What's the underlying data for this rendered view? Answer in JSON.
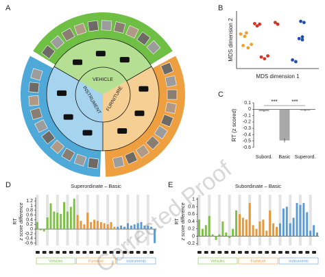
{
  "diagram": {
    "panel": "A",
    "labels": [
      "VEHICLE",
      "INSTRUMENT",
      "FURNITURE"
    ]
  },
  "watermark": "Corrected Proof",
  "chart_data": [
    {
      "type": "scatter",
      "panel": "B",
      "xlabel": "MDS dimension 1",
      "ylabel": "MDS dimension 2",
      "xlim": [
        0,
        1
      ],
      "ylim": [
        0,
        1
      ],
      "series": [
        {
          "color": "#d93025",
          "x": [
            0.22,
            0.25,
            0.28,
            0.47,
            0.5,
            0.3,
            0.34,
            0.38
          ],
          "y": [
            0.78,
            0.74,
            0.77,
            0.8,
            0.77,
            0.2,
            0.17,
            0.22
          ]
        },
        {
          "color": "#1f4fb0",
          "x": [
            0.78,
            0.82,
            0.8,
            0.76,
            0.8,
            0.68,
            0.72
          ],
          "y": [
            0.82,
            0.8,
            0.55,
            0.52,
            0.5,
            0.15,
            0.12
          ]
        },
        {
          "color": "#f0a030",
          "x": [
            0.05,
            0.1,
            0.12,
            0.08,
            0.14,
            0.18
          ],
          "y": [
            0.6,
            0.56,
            0.62,
            0.4,
            0.36,
            0.42
          ]
        }
      ]
    },
    {
      "type": "bar",
      "panel": "C",
      "ylabel": "RT (z scored)",
      "categories": [
        "Subord.",
        "Basic",
        "Superord."
      ],
      "values": [
        -0.03,
        -0.49,
        -0.02
      ],
      "errors": [
        0.01,
        0.03,
        0.01
      ],
      "color": "#a8a8a8",
      "ylim": [
        -0.6,
        0.1
      ],
      "yticks": [
        0.1,
        0,
        -0.1,
        -0.2,
        -0.3,
        -0.4,
        -0.5,
        -0.6
      ],
      "annotations": [
        "***",
        "***"
      ]
    },
    {
      "type": "bar",
      "panel": "D",
      "title": "Superordinate – Basic",
      "ylabel": [
        "RT",
        "z score difference"
      ],
      "ylim": [
        -0.7,
        1.35
      ],
      "yticks": [
        1.2,
        1,
        0.8,
        0.6,
        0.4,
        0.2,
        0,
        -0.2,
        -0.4,
        -0.6
      ],
      "groups": [
        {
          "name": "Vehicles",
          "color": "#7cc242",
          "values": [
            0.3,
            -0.05,
            -0.1,
            0.5,
            1.1,
            0.75,
            0.7,
            0.65,
            1.15,
            0.75,
            0.95,
            1.3
          ]
        },
        {
          "name": "Furniture",
          "color": "#e8963a",
          "values": [
            0.6,
            0.35,
            0.2,
            0.7,
            0.3,
            0.4,
            0.35,
            0.3,
            0.25,
            0.2,
            0.3,
            0.1
          ]
        },
        {
          "name": "Instruments",
          "color": "#5b9bd5",
          "values": [
            0.1,
            0.15,
            0.1,
            0.25,
            0.15,
            0.2,
            0.25,
            0.3,
            0.15,
            0.15,
            0.1,
            -0.6
          ]
        }
      ]
    },
    {
      "type": "bar",
      "panel": "E",
      "title": "Subordinate – Basic",
      "ylabel": [
        "RT",
        "z score difference"
      ],
      "ylim": [
        -0.25,
        1.05
      ],
      "yticks": [
        1,
        0.8,
        0.6,
        0.4,
        0.2,
        0,
        -0.2
      ],
      "groups": [
        {
          "name": "Vehicles",
          "color": "#7cc242",
          "values": [
            0.45,
            0.2,
            0.3,
            0.55,
            0.05,
            -0.1,
            0.05,
            0.4,
            0.1,
            -0.05,
            0.2,
            0.7
          ]
        },
        {
          "name": "Furniture",
          "color": "#e8963a",
          "values": [
            0.6,
            0.5,
            0.45,
            0.9,
            0.3,
            0.2,
            0.4,
            0.45,
            0.15,
            0.7,
            0.35,
            0.25
          ]
        },
        {
          "name": "Instruments",
          "color": "#5b9bd5",
          "values": [
            0.35,
            0.75,
            0.8,
            0.35,
            0.5,
            0.9,
            0.85,
            0.9,
            0.65,
            0.15,
            0.3,
            0.1
          ]
        }
      ]
    }
  ]
}
